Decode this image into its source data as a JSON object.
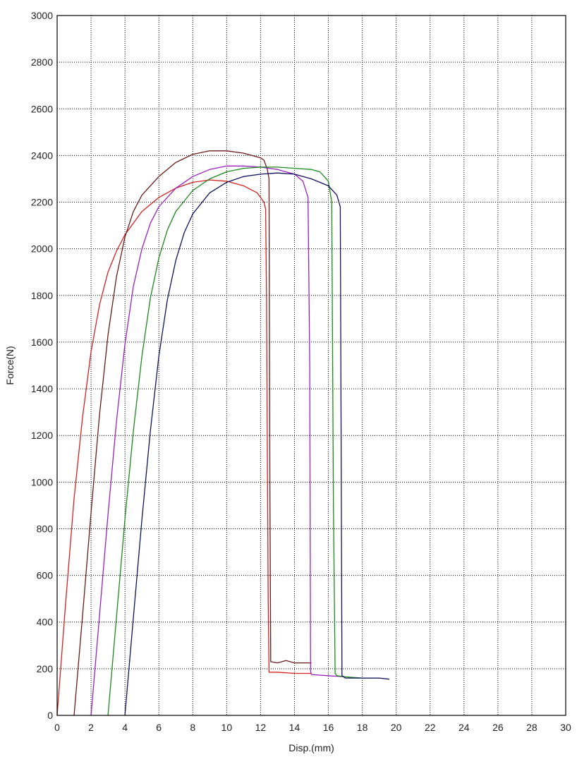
{
  "chart_data": {
    "type": "line",
    "title": "",
    "xlabel": "Disp.(mm)",
    "ylabel": "Force(N)",
    "xlim": [
      0,
      30
    ],
    "ylim": [
      0,
      3000
    ],
    "x_ticks": [
      0,
      2,
      4,
      6,
      8,
      10,
      12,
      14,
      16,
      18,
      20,
      22,
      24,
      26,
      28,
      30
    ],
    "y_ticks": [
      0,
      200,
      400,
      600,
      800,
      1000,
      1200,
      1400,
      1600,
      1800,
      2000,
      2200,
      2400,
      2600,
      2800,
      3000
    ],
    "grid": true,
    "legend": "none",
    "series": [
      {
        "color": "#d42020",
        "points": [
          [
            0,
            0
          ],
          [
            0.5,
            480
          ],
          [
            1,
            930
          ],
          [
            1.5,
            1280
          ],
          [
            2,
            1560
          ],
          [
            2.5,
            1760
          ],
          [
            3,
            1900
          ],
          [
            3.5,
            1990
          ],
          [
            4,
            2060
          ],
          [
            5,
            2160
          ],
          [
            6,
            2220
          ],
          [
            7,
            2260
          ],
          [
            8,
            2285
          ],
          [
            9,
            2295
          ],
          [
            10,
            2290
          ],
          [
            11,
            2270
          ],
          [
            11.8,
            2240
          ],
          [
            12.2,
            2200
          ],
          [
            12.3,
            2170
          ],
          [
            12.35,
            1800
          ],
          [
            12.4,
            1130
          ],
          [
            12.45,
            500
          ],
          [
            12.5,
            185
          ],
          [
            13,
            185
          ],
          [
            14,
            180
          ],
          [
            15,
            180
          ]
        ]
      },
      {
        "color": "#6a1a1a",
        "points": [
          [
            1,
            0
          ],
          [
            1.5,
            430
          ],
          [
            2,
            870
          ],
          [
            2.5,
            1290
          ],
          [
            3,
            1630
          ],
          [
            3.5,
            1880
          ],
          [
            4,
            2050
          ],
          [
            4.5,
            2160
          ],
          [
            5,
            2230
          ],
          [
            6,
            2310
          ],
          [
            7,
            2370
          ],
          [
            8,
            2405
          ],
          [
            9,
            2420
          ],
          [
            10,
            2420
          ],
          [
            11,
            2410
          ],
          [
            12,
            2390
          ],
          [
            12.2,
            2380
          ],
          [
            12.4,
            2340
          ],
          [
            12.5,
            2300
          ],
          [
            12.55,
            1000
          ],
          [
            12.6,
            230
          ],
          [
            13,
            225
          ],
          [
            13.5,
            235
          ],
          [
            14,
            225
          ],
          [
            15,
            225
          ]
        ]
      },
      {
        "color": "#9b1fbf",
        "points": [
          [
            2,
            0
          ],
          [
            2.5,
            430
          ],
          [
            3,
            860
          ],
          [
            3.5,
            1260
          ],
          [
            4,
            1590
          ],
          [
            4.5,
            1840
          ],
          [
            5,
            2000
          ],
          [
            5.5,
            2110
          ],
          [
            6,
            2180
          ],
          [
            7,
            2260
          ],
          [
            8,
            2310
          ],
          [
            9,
            2340
          ],
          [
            10,
            2355
          ],
          [
            11,
            2355
          ],
          [
            12,
            2350
          ],
          [
            13,
            2340
          ],
          [
            14,
            2320
          ],
          [
            14.5,
            2290
          ],
          [
            14.8,
            2220
          ],
          [
            14.9,
            1500
          ],
          [
            14.95,
            190
          ],
          [
            15,
            175
          ],
          [
            16,
            170
          ],
          [
            17,
            165
          ]
        ]
      },
      {
        "color": "#1a8a1a",
        "points": [
          [
            3,
            0
          ],
          [
            3.5,
            420
          ],
          [
            4,
            840
          ],
          [
            4.5,
            1220
          ],
          [
            5,
            1540
          ],
          [
            5.5,
            1790
          ],
          [
            6,
            1960
          ],
          [
            6.5,
            2080
          ],
          [
            7,
            2160
          ],
          [
            8,
            2250
          ],
          [
            9,
            2300
          ],
          [
            10,
            2330
          ],
          [
            11,
            2345
          ],
          [
            12,
            2350
          ],
          [
            13,
            2350
          ],
          [
            14,
            2345
          ],
          [
            15,
            2340
          ],
          [
            15.5,
            2330
          ],
          [
            16,
            2290
          ],
          [
            16.2,
            2200
          ],
          [
            16.3,
            900
          ],
          [
            16.4,
            180
          ],
          [
            16.5,
            170
          ],
          [
            17,
            165
          ],
          [
            18,
            160
          ],
          [
            19,
            160
          ]
        ]
      },
      {
        "color": "#12125c",
        "points": [
          [
            4,
            0
          ],
          [
            4.5,
            420
          ],
          [
            5,
            840
          ],
          [
            5.5,
            1220
          ],
          [
            6,
            1540
          ],
          [
            6.5,
            1780
          ],
          [
            7,
            1950
          ],
          [
            7.5,
            2070
          ],
          [
            8,
            2150
          ],
          [
            9,
            2240
          ],
          [
            10,
            2285
          ],
          [
            11,
            2310
          ],
          [
            12,
            2320
          ],
          [
            13,
            2325
          ],
          [
            14,
            2320
          ],
          [
            15,
            2300
          ],
          [
            16,
            2270
          ],
          [
            16.5,
            2230
          ],
          [
            16.7,
            2180
          ],
          [
            16.75,
            1200
          ],
          [
            16.8,
            170
          ],
          [
            17,
            160
          ],
          [
            18,
            160
          ],
          [
            19,
            160
          ],
          [
            19.6,
            155
          ]
        ]
      }
    ]
  }
}
